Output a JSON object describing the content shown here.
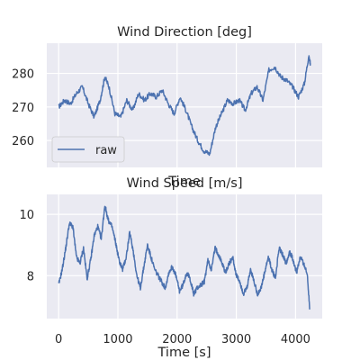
{
  "colors": {
    "background": "#ffffff",
    "axes_face": "#eaeaf2",
    "grid": "#ffffff",
    "line": "#4c72b0",
    "text": "#262626"
  },
  "chart_data": [
    {
      "type": "line",
      "title": "Wind Direction [deg]",
      "xlabel": "Time",
      "ylabel": "",
      "xlim": [
        -200,
        4450
      ],
      "ylim": [
        252,
        289
      ],
      "xticks": [
        0,
        1000,
        2000,
        3000,
        4000
      ],
      "xtick_labels": [
        "",
        "",
        "",
        "",
        ""
      ],
      "yticks": [
        260,
        270,
        280
      ],
      "ytick_labels": [
        "260",
        "270",
        "280"
      ],
      "grid": true,
      "legend": {
        "position": "lower-left",
        "entries": [
          "raw"
        ]
      },
      "series": [
        {
          "name": "raw",
          "x": [
            0,
            100,
            200,
            300,
            400,
            500,
            600,
            700,
            780,
            850,
            950,
            1050,
            1150,
            1250,
            1350,
            1450,
            1550,
            1650,
            1750,
            1850,
            1950,
            2050,
            2150,
            2250,
            2350,
            2450,
            2550,
            2650,
            2750,
            2850,
            2950,
            3050,
            3150,
            3250,
            3350,
            3450,
            3550,
            3650,
            3750,
            3850,
            3950,
            4050,
            4150,
            4220,
            4250
          ],
          "y": [
            270,
            272,
            271,
            274,
            276,
            271,
            267,
            272,
            279,
            276,
            268,
            267,
            272,
            269,
            274,
            272,
            274,
            273,
            275,
            271,
            268,
            273,
            269,
            264,
            260,
            257,
            256,
            264,
            268,
            272,
            271,
            272,
            269,
            274,
            276,
            272,
            281,
            282,
            279,
            278,
            276,
            273,
            277,
            285,
            283
          ]
        }
      ]
    },
    {
      "type": "line",
      "title": "Wind Speed [m/s]",
      "xlabel": "Time [s]",
      "ylabel": "",
      "xlim": [
        -200,
        4450
      ],
      "ylim": [
        6.6,
        10.65
      ],
      "xticks": [
        0,
        1000,
        2000,
        3000,
        4000
      ],
      "xtick_labels": [
        "0",
        "1000",
        "2000",
        "3000",
        "4000"
      ],
      "yticks": [
        8,
        10
      ],
      "ytick_labels": [
        "8",
        "10"
      ],
      "grid": true,
      "series": [
        {
          "name": "raw",
          "x": [
            0,
            60,
            120,
            180,
            240,
            300,
            360,
            420,
            480,
            540,
            600,
            660,
            720,
            780,
            840,
            900,
            960,
            1020,
            1080,
            1140,
            1200,
            1260,
            1320,
            1380,
            1440,
            1500,
            1560,
            1620,
            1680,
            1740,
            1800,
            1860,
            1920,
            1980,
            2040,
            2100,
            2160,
            2220,
            2280,
            2340,
            2400,
            2460,
            2520,
            2580,
            2640,
            2700,
            2760,
            2820,
            2880,
            2940,
            3000,
            3060,
            3120,
            3180,
            3240,
            3300,
            3360,
            3420,
            3480,
            3540,
            3600,
            3660,
            3720,
            3780,
            3840,
            3900,
            3960,
            4020,
            4080,
            4140,
            4200,
            4240
          ],
          "y": [
            7.7,
            8.2,
            8.9,
            9.7,
            9.6,
            8.6,
            8.4,
            8.9,
            7.9,
            8.5,
            9.3,
            9.6,
            9.2,
            10.3,
            9.8,
            9.6,
            9.1,
            8.5,
            8.2,
            8.6,
            9.4,
            8.8,
            8.0,
            7.6,
            8.3,
            9.0,
            8.6,
            8.2,
            8.0,
            7.8,
            7.6,
            8.1,
            8.3,
            8.0,
            7.5,
            7.7,
            8.1,
            7.9,
            7.4,
            7.6,
            7.7,
            7.8,
            8.5,
            8.2,
            8.9,
            8.7,
            8.4,
            8.1,
            8.4,
            8.6,
            8.0,
            7.8,
            7.4,
            7.6,
            8.2,
            7.8,
            7.4,
            7.6,
            8.1,
            8.6,
            8.2,
            7.9,
            8.9,
            8.7,
            8.4,
            8.8,
            8.5,
            8.1,
            8.6,
            8.4,
            8.0,
            6.9
          ]
        }
      ]
    }
  ]
}
